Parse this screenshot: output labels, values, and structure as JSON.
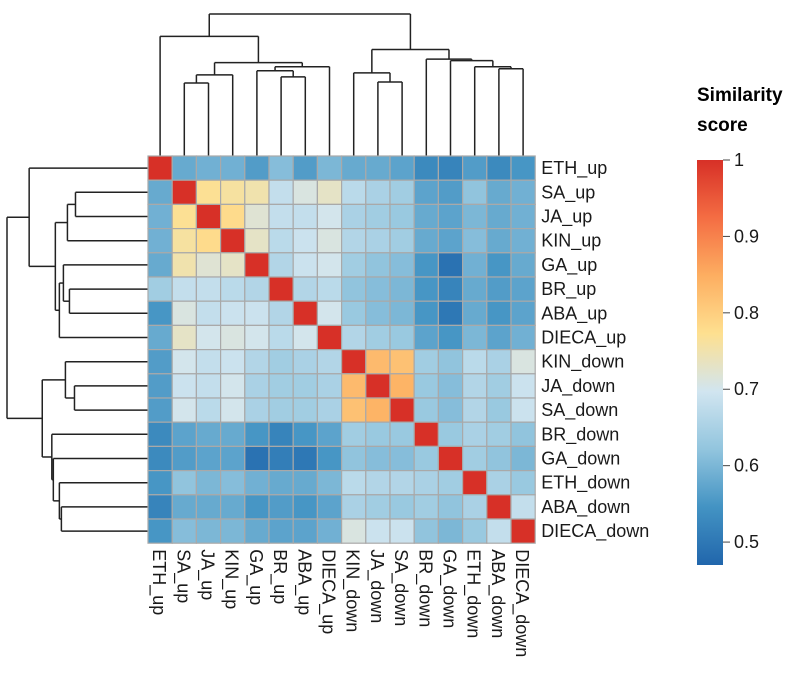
{
  "chart_data": {
    "type": "heatmap",
    "title": "",
    "labels": [
      "ETH_up",
      "SA_up",
      "JA_up",
      "KIN_up",
      "GA_up",
      "BR_up",
      "ABA_up",
      "DIECA_up",
      "KIN_down",
      "JA_down",
      "SA_down",
      "BR_down",
      "GA_down",
      "ETH_down",
      "ABA_down",
      "DIECA_down"
    ],
    "values": [
      [
        1.0,
        0.58,
        0.59,
        0.59,
        0.56,
        0.61,
        0.56,
        0.6,
        0.58,
        0.58,
        0.57,
        0.53,
        0.52,
        0.56,
        0.53,
        0.55
      ],
      [
        0.58,
        1.0,
        0.77,
        0.76,
        0.75,
        0.68,
        0.71,
        0.73,
        0.67,
        0.65,
        0.64,
        0.57,
        0.56,
        0.62,
        0.58,
        0.59
      ],
      [
        0.59,
        0.77,
        1.0,
        0.78,
        0.72,
        0.68,
        0.68,
        0.7,
        0.65,
        0.64,
        0.63,
        0.58,
        0.57,
        0.6,
        0.58,
        0.59
      ],
      [
        0.59,
        0.76,
        0.78,
        1.0,
        0.73,
        0.67,
        0.69,
        0.71,
        0.66,
        0.65,
        0.64,
        0.58,
        0.57,
        0.61,
        0.58,
        0.59
      ],
      [
        0.58,
        0.75,
        0.72,
        0.73,
        1.0,
        0.66,
        0.69,
        0.7,
        0.64,
        0.62,
        0.61,
        0.55,
        0.49,
        0.59,
        0.55,
        0.58
      ],
      [
        0.64,
        0.68,
        0.68,
        0.67,
        0.66,
        1.0,
        0.66,
        0.67,
        0.62,
        0.61,
        0.6,
        0.55,
        0.52,
        0.58,
        0.56,
        0.57
      ],
      [
        0.55,
        0.71,
        0.68,
        0.69,
        0.69,
        0.66,
        1.0,
        0.7,
        0.63,
        0.61,
        0.6,
        0.55,
        0.5,
        0.58,
        0.55,
        0.57
      ],
      [
        0.58,
        0.73,
        0.7,
        0.71,
        0.7,
        0.67,
        0.7,
        1.0,
        0.66,
        0.64,
        0.63,
        0.57,
        0.55,
        0.6,
        0.57,
        0.59
      ],
      [
        0.56,
        0.7,
        0.68,
        0.69,
        0.66,
        0.64,
        0.65,
        0.66,
        1.0,
        0.83,
        0.82,
        0.64,
        0.62,
        0.67,
        0.65,
        0.71
      ],
      [
        0.56,
        0.69,
        0.68,
        0.7,
        0.65,
        0.64,
        0.64,
        0.65,
        0.83,
        1.0,
        0.84,
        0.63,
        0.61,
        0.66,
        0.64,
        0.69
      ],
      [
        0.56,
        0.7,
        0.67,
        0.7,
        0.65,
        0.64,
        0.64,
        0.65,
        0.82,
        0.84,
        1.0,
        0.63,
        0.61,
        0.66,
        0.63,
        0.69
      ],
      [
        0.53,
        0.57,
        0.58,
        0.58,
        0.55,
        0.52,
        0.55,
        0.57,
        0.64,
        0.63,
        0.63,
        1.0,
        0.63,
        0.65,
        0.64,
        0.62
      ],
      [
        0.53,
        0.56,
        0.57,
        0.57,
        0.49,
        0.51,
        0.5,
        0.55,
        0.62,
        0.61,
        0.61,
        0.63,
        1.0,
        0.64,
        0.62,
        0.6
      ],
      [
        0.55,
        0.62,
        0.6,
        0.61,
        0.59,
        0.58,
        0.58,
        0.6,
        0.67,
        0.66,
        0.66,
        0.65,
        0.64,
        1.0,
        0.65,
        0.63
      ],
      [
        0.52,
        0.58,
        0.58,
        0.58,
        0.55,
        0.56,
        0.55,
        0.57,
        0.65,
        0.64,
        0.63,
        0.64,
        0.62,
        0.65,
        1.0,
        0.68
      ],
      [
        0.55,
        0.61,
        0.6,
        0.6,
        0.58,
        0.57,
        0.57,
        0.59,
        0.71,
        0.69,
        0.69,
        0.62,
        0.6,
        0.63,
        0.68,
        1.0
      ]
    ],
    "value_range": [
      0.47,
      1.0
    ],
    "colormap": [
      "#2166ac",
      "#4393c3",
      "#92c5de",
      "#d1e5f0",
      "#fee090",
      "#fdae61",
      "#f46d43",
      "#d73027"
    ],
    "dendrogram": "hierarchical clustering on rows and columns",
    "legend": {
      "title_line1": "Similarity",
      "title_line2": "score",
      "ticks": [
        0.5,
        0.6,
        0.7,
        0.8,
        0.9,
        1
      ],
      "placement": "right"
    }
  }
}
